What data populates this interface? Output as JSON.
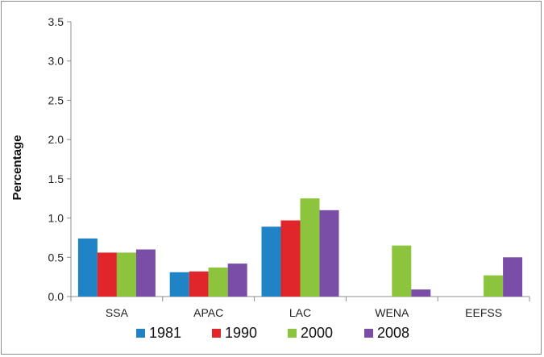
{
  "chart_data": {
    "type": "bar",
    "title": "",
    "xlabel": "",
    "ylabel": "Percentage",
    "ylim": [
      0,
      3.5
    ],
    "yticks": [
      "0.0",
      "0.5",
      "1.0",
      "1.5",
      "2.0",
      "2.5",
      "3.0",
      "3.5"
    ],
    "grid": false,
    "legend_position": "bottom",
    "categories": [
      "SSA",
      "APAC",
      "LAC",
      "WENA",
      "EEFSS"
    ],
    "series": [
      {
        "name": "1981",
        "color": "#1f83c6",
        "values": [
          0.74,
          0.31,
          0.89,
          0.0,
          0.0
        ]
      },
      {
        "name": "1990",
        "color": "#e0262b",
        "values": [
          0.56,
          0.32,
          0.97,
          0.0,
          0.0
        ]
      },
      {
        "name": "2000",
        "color": "#8cc43e",
        "values": [
          0.56,
          0.37,
          1.25,
          0.65,
          0.27
        ]
      },
      {
        "name": "2008",
        "color": "#7a4ea6",
        "values": [
          0.6,
          0.42,
          1.1,
          0.09,
          0.5
        ]
      }
    ]
  }
}
